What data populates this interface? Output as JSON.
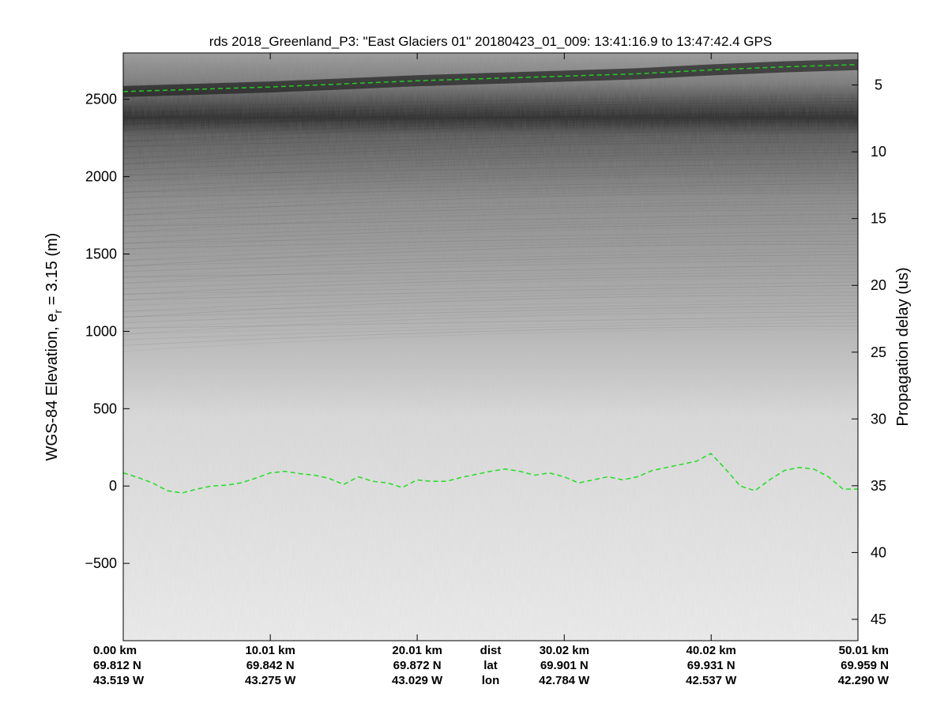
{
  "chart_data": {
    "type": "heatmap",
    "title": "rds 2018_Greenland_P3: \"East Glaciers 01\"  20180423_01_009: 13:41:16.9 to 13:47:42.4 GPS",
    "ylabel_left_prefix": "WGS-84 Elevation, e",
    "ylabel_left_sub": "r",
    "ylabel_left_suffix": " = 3.15 (m)",
    "ylabel_right": "Propagation delay (us)",
    "ylim": [
      -1000,
      2800
    ],
    "y_right_lim": [
      46.6,
      2.6
    ],
    "xlim": [
      0,
      50.01
    ],
    "grid": false,
    "colormap": "gray",
    "left_ticks": [
      2500,
      2000,
      1500,
      1000,
      500,
      0,
      -500
    ],
    "left_tick_labels": [
      "2500",
      "2000",
      "1500",
      "1000",
      "500",
      "0",
      "−500"
    ],
    "right_ticks": [
      5,
      10,
      15,
      20,
      25,
      30,
      35,
      40,
      45
    ],
    "right_tick_labels": [
      "5",
      "10",
      "15",
      "20",
      "25",
      "30",
      "35",
      "40",
      "45"
    ],
    "x_ticks": [
      {
        "value": 0.0,
        "dist": "0.00 km",
        "lat": "69.812 N",
        "lon": "43.519 W"
      },
      {
        "value": 10.01,
        "dist": "10.01 km",
        "lat": "69.842 N",
        "lon": "43.275 W"
      },
      {
        "value": 20.01,
        "dist": "20.01 km",
        "lat": "69.872 N",
        "lon": "43.029 W"
      },
      {
        "value": 30.02,
        "dist": "30.02 km",
        "lat": "69.901 N",
        "lon": "42.784 W"
      },
      {
        "value": 40.02,
        "dist": "40.02 km",
        "lat": "69.931 N",
        "lon": "42.537 W"
      },
      {
        "value": 50.01,
        "dist": "50.01 km",
        "lat": "69.959 N",
        "lon": "42.290 W"
      }
    ],
    "row_labels": {
      "dist": "dist",
      "lat": "lat",
      "lon": "lon"
    },
    "series": [
      {
        "color": "#22cc22",
        "style": "dashed",
        "x": [
          0,
          5,
          10,
          15,
          20,
          25,
          30,
          35,
          40,
          45,
          50.01
        ],
        "y": [
          2550,
          2565,
          2580,
          2600,
          2620,
          2635,
          2650,
          2665,
          2690,
          2710,
          2725
        ]
      },
      {
        "color": "#22dd22",
        "style": "dashed",
        "x": [
          0,
          1,
          2,
          3,
          4,
          5,
          6,
          7,
          8,
          9,
          10,
          11,
          12,
          13,
          14,
          15,
          16,
          17,
          18,
          19,
          20,
          21,
          22,
          23,
          24,
          25,
          26,
          27,
          28,
          29,
          30,
          31,
          32,
          33,
          34,
          35,
          36,
          37,
          38,
          39,
          40,
          41,
          42,
          43,
          44,
          45,
          46,
          47,
          48,
          49,
          50.01
        ],
        "y": [
          85,
          55,
          20,
          -30,
          -45,
          -20,
          0,
          5,
          20,
          50,
          85,
          95,
          80,
          70,
          50,
          10,
          60,
          30,
          20,
          -10,
          40,
          30,
          30,
          55,
          75,
          95,
          110,
          95,
          70,
          85,
          60,
          20,
          40,
          60,
          40,
          60,
          100,
          120,
          140,
          160,
          210,
          110,
          0,
          -30,
          40,
          100,
          120,
          110,
          60,
          -20,
          -20
        ]
      }
    ]
  }
}
